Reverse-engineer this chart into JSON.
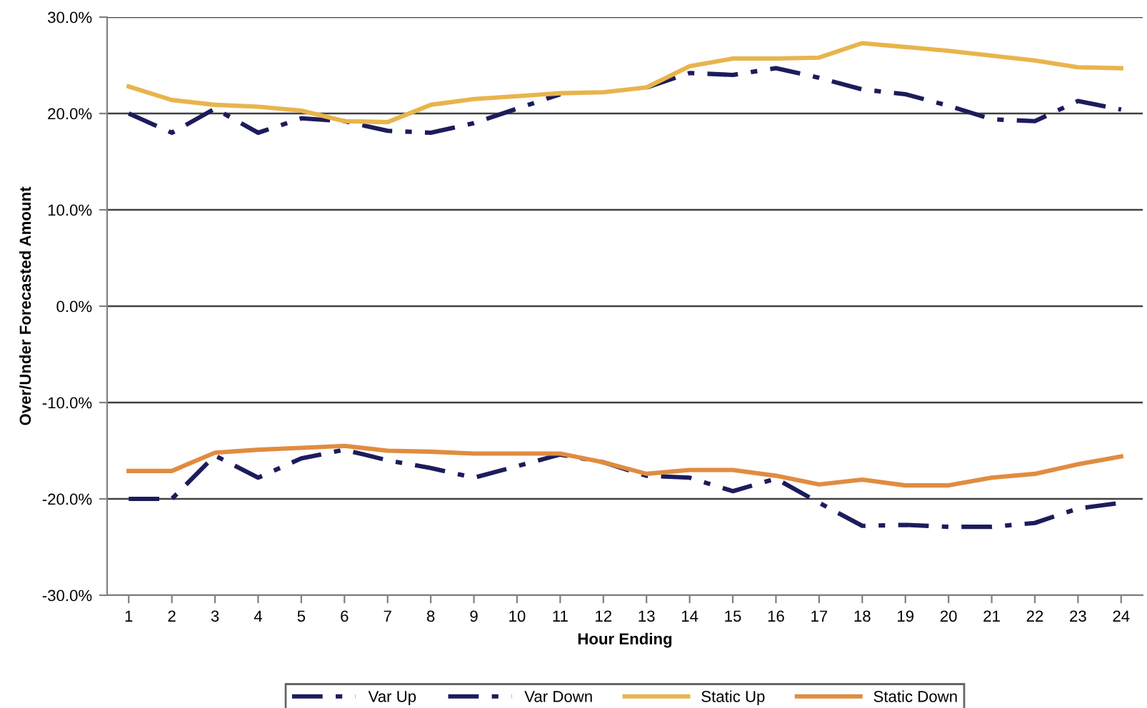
{
  "chart_data": {
    "type": "line",
    "xlabel": "Hour Ending",
    "ylabel": "Over/Under Forecasted Amount",
    "categories": [
      "1",
      "2",
      "3",
      "4",
      "5",
      "6",
      "7",
      "8",
      "9",
      "10",
      "11",
      "12",
      "13",
      "14",
      "15",
      "16",
      "17",
      "18",
      "19",
      "20",
      "21",
      "22",
      "23",
      "24"
    ],
    "series": [
      {
        "name": "Var Up",
        "color": "#1c1c5c",
        "line_style": "dashed",
        "values": [
          20.0,
          18.0,
          20.5,
          18.0,
          19.5,
          19.2,
          18.2,
          18.0,
          19.0,
          20.5,
          22.0,
          null,
          22.7,
          24.2,
          24.0,
          24.7,
          23.7,
          22.5,
          22.0,
          20.8,
          19.4,
          19.2,
          21.3,
          20.4
        ]
      },
      {
        "name": "Var Down",
        "color": "#1c1c5c",
        "line_style": "dashed",
        "values": [
          -20.0,
          -20.0,
          -15.5,
          -17.8,
          -15.8,
          -14.9,
          -16.0,
          -16.8,
          -17.8,
          -16.6,
          -15.4,
          -16.2,
          -17.6,
          -17.8,
          -19.2,
          -17.9,
          -20.4,
          -22.8,
          -22.7,
          -22.9,
          -22.9,
          -22.5,
          -21.0,
          -20.4
        ]
      },
      {
        "name": "Static Up",
        "color": "#e8b44c",
        "line_style": "solid",
        "values": [
          22.8,
          21.4,
          20.9,
          20.7,
          20.3,
          19.2,
          19.1,
          20.9,
          21.5,
          21.8,
          22.1,
          22.2,
          22.7,
          24.9,
          25.7,
          25.7,
          25.8,
          27.3,
          26.9,
          26.5,
          26.0,
          25.5,
          24.8,
          24.7
        ]
      },
      {
        "name": "Static Down",
        "color": "#e08c40",
        "line_style": "solid",
        "values": [
          -17.1,
          -17.1,
          -15.2,
          -14.9,
          -14.7,
          -14.5,
          -15.0,
          -15.1,
          -15.3,
          -15.3,
          -15.3,
          -16.2,
          -17.4,
          -17.0,
          -17.0,
          -17.6,
          -18.5,
          -18.0,
          -18.6,
          -18.6,
          -17.8,
          -17.4,
          -16.4,
          -15.6
        ]
      }
    ],
    "ylim": [
      -30,
      30
    ],
    "yticks": [
      {
        "value": -30,
        "label": "-30.0%"
      },
      {
        "value": -20,
        "label": "-20.0%"
      },
      {
        "value": -10,
        "label": "-10.0%"
      },
      {
        "value": 0,
        "label": "0.0%"
      },
      {
        "value": 10,
        "label": "10.0%"
      },
      {
        "value": 20,
        "label": "20.0%"
      },
      {
        "value": 30,
        "label": "30.0%"
      }
    ],
    "grid": "y",
    "legend": "bottom",
    "marker": "none"
  }
}
